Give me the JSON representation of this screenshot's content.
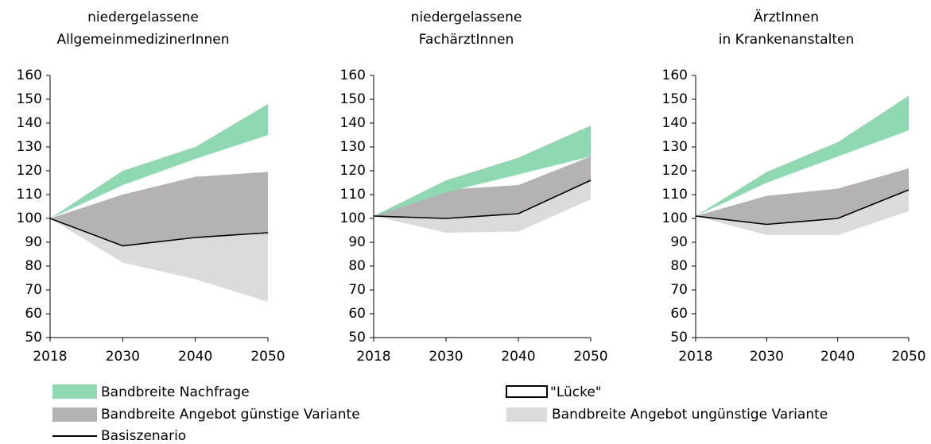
{
  "legend": [
    {
      "name": "Bandbreite Nachfrage",
      "color": "#8ed9b1"
    },
    {
      "name": "\"Lücke\"",
      "color": "#000000"
    },
    {
      "name": "Bandbreite Angebot günstige Variante",
      "color": "#b4b2b2"
    },
    {
      "name": "Bandbreite Angebot ungünstige Variante",
      "color": "#dbdbdb"
    },
    {
      "name": "Basiszenario",
      "color": "#000000"
    }
  ],
  "chart_data": [
    {
      "type": "band",
      "title": [
        "niedergelassene",
        "AllgemeinmedizinerInnen"
      ],
      "categories": [
        "2018",
        "2030",
        "2040",
        "2050"
      ],
      "ylim": [
        50,
        160
      ],
      "yticks": [
        50,
        60,
        70,
        80,
        90,
        100,
        110,
        120,
        130,
        140,
        150,
        160
      ],
      "series": [
        {
          "name": "Bandbreite Angebot ungünstige Variante",
          "low": [
            100,
            81.5,
            74.5,
            65
          ],
          "values": [
            100,
            88.5,
            92,
            94
          ]
        },
        {
          "name": "Bandbreite Angebot günstige Variante",
          "low": [
            100,
            88.5,
            92,
            94
          ],
          "values": [
            100,
            110,
            117.5,
            119.5
          ]
        },
        {
          "name": "Bandbreite Nachfrage",
          "low": [
            100,
            114,
            125,
            135
          ],
          "values": [
            100,
            120,
            130,
            148
          ]
        },
        {
          "name": "Basiszenario",
          "values": [
            100,
            88.5,
            92,
            94
          ]
        }
      ]
    },
    {
      "type": "band",
      "title": [
        "niedergelassene",
        "FachärztInnen"
      ],
      "categories": [
        "2018",
        "2030",
        "2040",
        "2050"
      ],
      "ylim": [
        50,
        160
      ],
      "yticks": [
        50,
        60,
        70,
        80,
        90,
        100,
        110,
        120,
        130,
        140,
        150,
        160
      ],
      "series": [
        {
          "name": "Bandbreite Angebot ungünstige Variante",
          "low": [
            101,
            94,
            94.5,
            108
          ],
          "values": [
            101,
            100,
            102,
            116
          ]
        },
        {
          "name": "Bandbreite Angebot günstige Variante",
          "low": [
            101,
            100,
            102,
            116
          ],
          "values": [
            101,
            112,
            114,
            126
          ]
        },
        {
          "name": "Bandbreite Nachfrage",
          "low": [
            101,
            111,
            118.5,
            126
          ],
          "values": [
            101,
            116,
            125.5,
            139
          ]
        },
        {
          "name": "Basiszenario",
          "values": [
            101,
            100,
            102,
            116
          ]
        }
      ]
    },
    {
      "type": "band",
      "title": [
        "ÄrztInnen",
        "in Krankenanstalten"
      ],
      "categories": [
        "2018",
        "2030",
        "2040",
        "2050"
      ],
      "ylim": [
        50,
        160
      ],
      "yticks": [
        50,
        60,
        70,
        80,
        90,
        100,
        110,
        120,
        130,
        140,
        150,
        160
      ],
      "series": [
        {
          "name": "Bandbreite Angebot ungünstige Variante",
          "low": [
            101,
            93,
            93,
            103
          ],
          "values": [
            101,
            97.5,
            100,
            112
          ]
        },
        {
          "name": "Bandbreite Angebot günstige Variante",
          "low": [
            101,
            97.5,
            100,
            112
          ],
          "values": [
            101,
            109.5,
            112.5,
            121
          ]
        },
        {
          "name": "Bandbreite Nachfrage",
          "low": [
            101,
            115,
            126,
            137
          ],
          "values": [
            101,
            119.5,
            132,
            151.5
          ]
        },
        {
          "name": "Basiszenario",
          "values": [
            101,
            97.5,
            100,
            112
          ]
        }
      ]
    }
  ]
}
